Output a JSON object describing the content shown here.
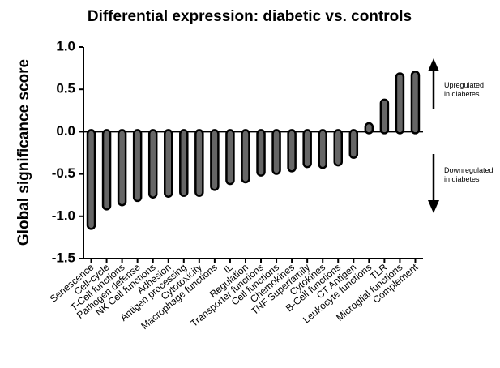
{
  "chart_data": {
    "type": "bar",
    "title": "Differential expression: diabetic vs. controls",
    "y_label": "Global significance score",
    "categories": [
      "Senescence",
      "Cell-cycle",
      "T-Cell functions",
      "Pathogen defense",
      "NK Cell functions",
      "Adhesion",
      "Antigen processing",
      "Cytotoxicity",
      "Macrophage functions",
      "IL",
      "Regulation",
      "Transporter functions",
      "Cell functions",
      "Chemokines",
      "TNF Superfamily",
      "Cytokines",
      "B-Cell functions",
      "CT Antigen",
      "Leukocyte functions",
      "TLR",
      "Microglial functions",
      "Complement"
    ],
    "values": [
      -1.13,
      -0.9,
      -0.85,
      -0.8,
      -0.76,
      -0.75,
      -0.74,
      -0.74,
      -0.67,
      -0.6,
      -0.58,
      -0.5,
      -0.48,
      -0.45,
      -0.4,
      -0.41,
      -0.38,
      -0.29,
      0.08,
      0.36,
      0.67,
      0.69
    ],
    "color": "#666666",
    "ylim": [
      -1.5,
      1.0
    ],
    "yticks": [
      -1.5,
      {
        "value": -1,
        "label": "-1.0"
      },
      -0.5,
      {
        "value": 0,
        "label": "0.0"
      },
      0.5,
      {
        "value": 1,
        "label": "1.0"
      }
    ],
    "annotations": [
      {
        "lines": [
          "Upregulated",
          "in diabetes"
        ]
      },
      {
        "lines": [
          "Downregulated",
          "in diabetes"
        ]
      }
    ]
  }
}
